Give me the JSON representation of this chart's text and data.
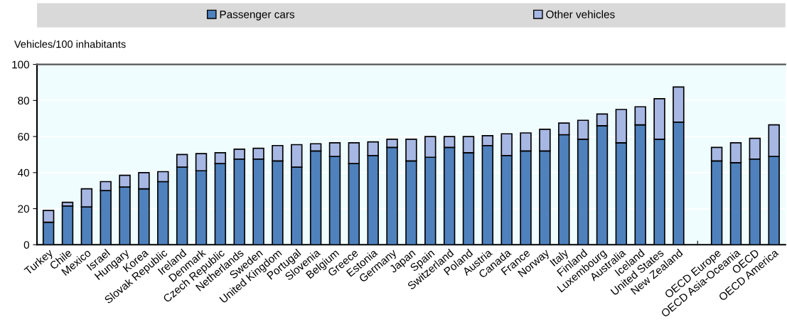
{
  "chart_data": {
    "type": "bar",
    "stacked": true,
    "ylabel": "Vehicles/100 inhabitants",
    "categories": [
      "Turkey",
      "Chile",
      "Mexico",
      "Israel",
      "Hungary",
      "Korea",
      "Slovak Republic",
      "Ireland",
      "Denmark",
      "Czech Republic",
      "Netherlands",
      "Sweden",
      "United Kingdom",
      "Portugal",
      "Slovenia",
      "Belgium",
      "Greece",
      "Estonia",
      "Germany",
      "Japan",
      "Spain",
      "Switzerland",
      "Poland",
      "Austria",
      "Canada",
      "France",
      "Norway",
      "Italy",
      "Finland",
      "Luxembourg",
      "Australia",
      "Iceland",
      "United States",
      "New Zealand",
      null,
      "OECD Europe",
      "OECD Asia-Oceania",
      "OECD",
      "OECD America"
    ],
    "series": [
      {
        "name": "Passenger cars",
        "color": "#4f81bd",
        "values": [
          12.5,
          21.5,
          21,
          30,
          32,
          31,
          35,
          43,
          41,
          45,
          47.5,
          47.5,
          46.5,
          43,
          52,
          49,
          45,
          49.5,
          54,
          46.5,
          48.5,
          54,
          51,
          55,
          49.5,
          52,
          52,
          61,
          58.5,
          66,
          56.5,
          66.5,
          58.5,
          68,
          null,
          46.5,
          45.5,
          47.5,
          49
        ]
      },
      {
        "name": "Other vehicles",
        "color": "#a7b7e3",
        "values": [
          6.5,
          2,
          10,
          5,
          6.5,
          9,
          5.5,
          7,
          9.5,
          6,
          5.5,
          6,
          8.5,
          12.5,
          4,
          7.5,
          11.5,
          7.5,
          4.5,
          12,
          11.5,
          6,
          9,
          5.5,
          12,
          10,
          12,
          6.5,
          10.5,
          6.5,
          18.5,
          10,
          22.5,
          19.5,
          null,
          7.5,
          11,
          11.5,
          17.5
        ]
      }
    ],
    "ylim": [
      0,
      100
    ],
    "yticks": [
      0,
      20,
      40,
      60,
      80,
      100
    ],
    "grid": "y",
    "legend": "top"
  }
}
